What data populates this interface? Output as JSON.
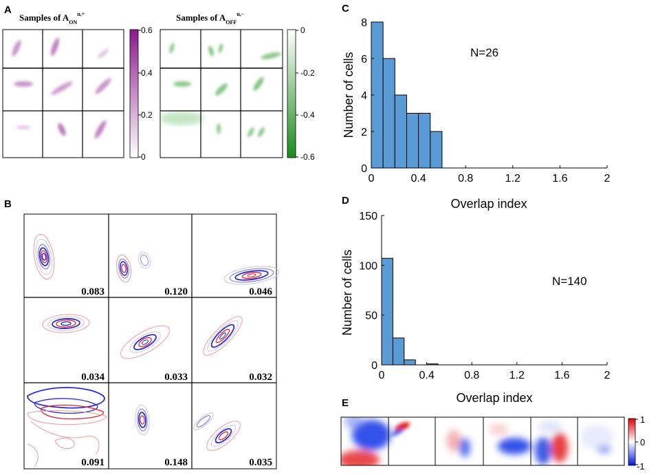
{
  "figure": {
    "panels": {
      "a": "A",
      "b": "B",
      "c": "C",
      "d": "D",
      "e": "E"
    }
  },
  "panelA": {
    "left_title_prefix": "Samples of A",
    "left_sub": "ON",
    "left_sup": "u,+",
    "right_title_prefix": "Samples of A",
    "right_sub": "OFF",
    "right_sup": "u,−",
    "on_colorbar_ticks": [
      "0.6",
      "0.4",
      "0.2",
      "0"
    ],
    "off_colorbar_ticks": [
      "0",
      "-0.2",
      "-0.4",
      "-0.6"
    ],
    "on_color": "#8b1a8b",
    "off_color": "#1a8c1a"
  },
  "panelB": {
    "overlap_values": [
      "0.083",
      "0.120",
      "0.046",
      "0.034",
      "0.033",
      "0.032",
      "0.091",
      "0.148",
      "0.035"
    ],
    "on_contour_color": "#e0242c",
    "off_contour_color": "#2a2ad6"
  },
  "panelE": {
    "colorbar_ticks": [
      "1",
      "0",
      "-1"
    ],
    "positive_color": "#e0000f",
    "negative_color": "#0019d9"
  },
  "chart_data": [
    {
      "id": "C",
      "type": "bar",
      "title": "",
      "annotation": "N=26",
      "xlabel": "Overlap index",
      "ylabel": "Number of cells",
      "bin_width": 0.1,
      "bin_starts": [
        0,
        0.1,
        0.2,
        0.3,
        0.4,
        0.5
      ],
      "values": [
        8,
        6,
        4,
        3,
        3,
        2
      ],
      "xlim": [
        0,
        2
      ],
      "ylim": [
        0,
        8
      ],
      "xticks": [
        0,
        0.4,
        0.8,
        1.2,
        1.6,
        2
      ],
      "xtick_labels": [
        "0",
        "0.4",
        "0.8",
        "1.2",
        "1.6",
        "2"
      ],
      "yticks": [
        0,
        2,
        4,
        6,
        8
      ],
      "ytick_labels": [
        "0",
        "2",
        "4",
        "6",
        "8"
      ],
      "bar_color": "#5b9bd5"
    },
    {
      "id": "D",
      "type": "bar",
      "title": "",
      "annotation": "N=140",
      "xlabel": "Overlap index",
      "ylabel": "Number of cells",
      "bin_width": 0.1,
      "bin_starts": [
        0,
        0.1,
        0.2,
        0.3,
        0.4
      ],
      "values": [
        107,
        27,
        5,
        0,
        1
      ],
      "xlim": [
        0,
        2
      ],
      "ylim": [
        0,
        150
      ],
      "xticks": [
        0,
        0.4,
        0.8,
        1.2,
        1.6,
        2
      ],
      "xtick_labels": [
        "0",
        "0.4",
        "0.8",
        "1.2",
        "1.6",
        "2"
      ],
      "yticks": [
        0,
        50,
        100,
        150
      ],
      "ytick_labels": [
        "0",
        "50",
        "100",
        "150"
      ],
      "bar_color": "#5b9bd5"
    }
  ]
}
